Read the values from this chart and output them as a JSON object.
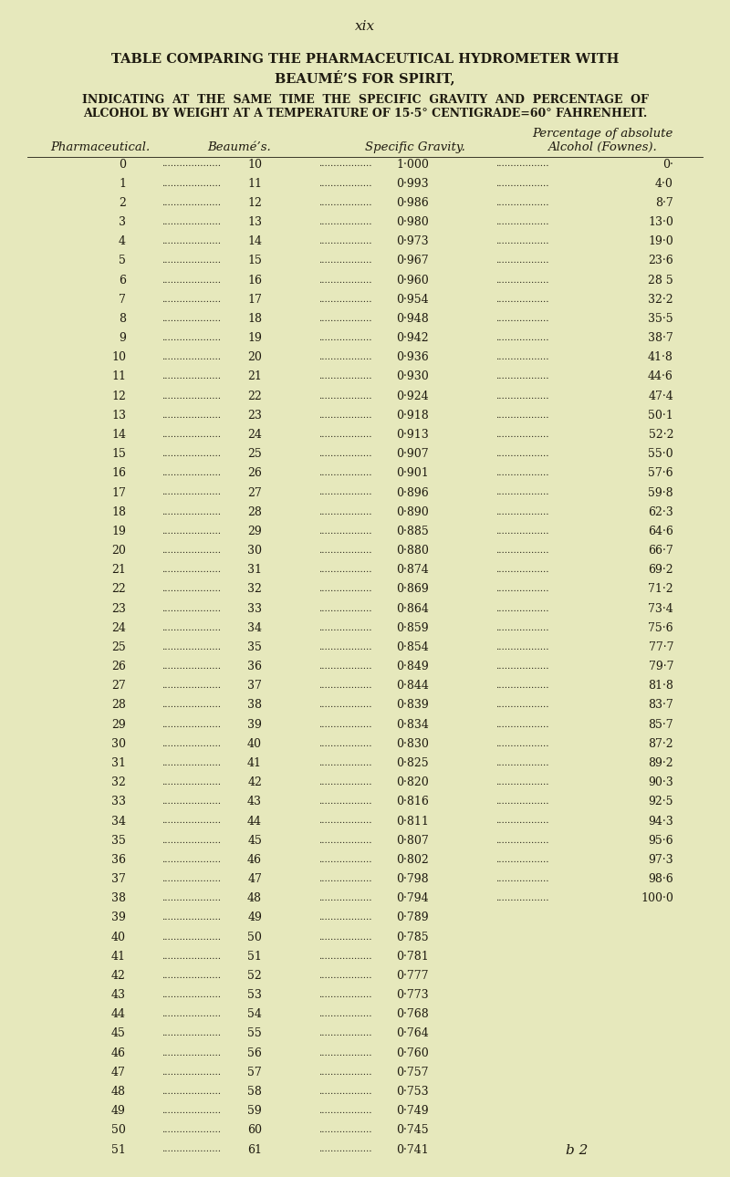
{
  "page_label": "xix",
  "title_line1": "TABLE COMPARING THE PHARMACEUTICAL HYDROMETER WITH",
  "title_line2": "BEAUMÉ’S FOR SPIRIT,",
  "subtitle_line1": "INDICATING  AT  THE  SAME  TIME  THE  SPECIFIC  GRAVITY  AND  PERCENTAGE  OF",
  "subtitle_line2": "ALCOHOL BY WEIGHT AT A TEMPERATURE OF 15·5° CENTIGRADE=60° FAHRENHEIT.",
  "hdr_pharma": "Pharmaceutical.",
  "hdr_beaume": "Beaumé’s.",
  "hdr_sg": "Specific Gravity.",
  "hdr_alc1": "Percentage of absolute",
  "hdr_alc2": "Alcohol (Fownes).",
  "footer": "b 2",
  "bg_color": "#e6e8bc",
  "text_color": "#1e1a10",
  "rows": [
    [
      0,
      10,
      "1·000",
      "0·"
    ],
    [
      1,
      11,
      "0·993",
      "4·0"
    ],
    [
      2,
      12,
      "0·986",
      "8·7"
    ],
    [
      3,
      13,
      "0·980",
      "13·0"
    ],
    [
      4,
      14,
      "0·973",
      "19·0"
    ],
    [
      5,
      15,
      "0·967",
      "23·6"
    ],
    [
      6,
      16,
      "0·960",
      "28 5"
    ],
    [
      7,
      17,
      "0·954",
      "32·2"
    ],
    [
      8,
      18,
      "0·948",
      "35·5"
    ],
    [
      9,
      19,
      "0·942",
      "38·7"
    ],
    [
      10,
      20,
      "0·936",
      "41·8"
    ],
    [
      11,
      21,
      "0·930",
      "44·6"
    ],
    [
      12,
      22,
      "0·924",
      "47·4"
    ],
    [
      13,
      23,
      "0·918",
      "50·1"
    ],
    [
      14,
      24,
      "0·913",
      "52·2"
    ],
    [
      15,
      25,
      "0·907",
      "55·0"
    ],
    [
      16,
      26,
      "0·901",
      "57·6"
    ],
    [
      17,
      27,
      "0·896",
      "59·8"
    ],
    [
      18,
      28,
      "0·890",
      "62·3"
    ],
    [
      19,
      29,
      "0·885",
      "64·6"
    ],
    [
      20,
      30,
      "0·880",
      "66·7"
    ],
    [
      21,
      31,
      "0·874",
      "69·2"
    ],
    [
      22,
      32,
      "0·869",
      "71·2"
    ],
    [
      23,
      33,
      "0·864",
      "73·4"
    ],
    [
      24,
      34,
      "0·859",
      "75·6"
    ],
    [
      25,
      35,
      "0·854",
      "77·7"
    ],
    [
      26,
      36,
      "0·849",
      "79·7"
    ],
    [
      27,
      37,
      "0·844",
      "81·8"
    ],
    [
      28,
      38,
      "0·839",
      "83·7"
    ],
    [
      29,
      39,
      "0·834",
      "85·7"
    ],
    [
      30,
      40,
      "0·830",
      "87·2"
    ],
    [
      31,
      41,
      "0·825",
      "89·2"
    ],
    [
      32,
      42,
      "0·820",
      "90·3"
    ],
    [
      33,
      43,
      "0·816",
      "92·5"
    ],
    [
      34,
      44,
      "0·811",
      "94·3"
    ],
    [
      35,
      45,
      "0·807",
      "95·6"
    ],
    [
      36,
      46,
      "0·802",
      "97·3"
    ],
    [
      37,
      47,
      "0·798",
      "98·6"
    ],
    [
      38,
      48,
      "0·794",
      "100·0"
    ],
    [
      39,
      49,
      "0·789",
      ""
    ],
    [
      40,
      50,
      "0·785",
      ""
    ],
    [
      41,
      51,
      "0·781",
      ""
    ],
    [
      42,
      52,
      "0·777",
      ""
    ],
    [
      43,
      53,
      "0·773",
      ""
    ],
    [
      44,
      54,
      "0·768",
      ""
    ],
    [
      45,
      55,
      "0·764",
      ""
    ],
    [
      46,
      56,
      "0·760",
      ""
    ],
    [
      47,
      57,
      "0·757",
      ""
    ],
    [
      48,
      58,
      "0·753",
      ""
    ],
    [
      49,
      59,
      "0·749",
      ""
    ],
    [
      50,
      60,
      "0·745",
      ""
    ],
    [
      51,
      61,
      "0·741",
      ""
    ]
  ]
}
